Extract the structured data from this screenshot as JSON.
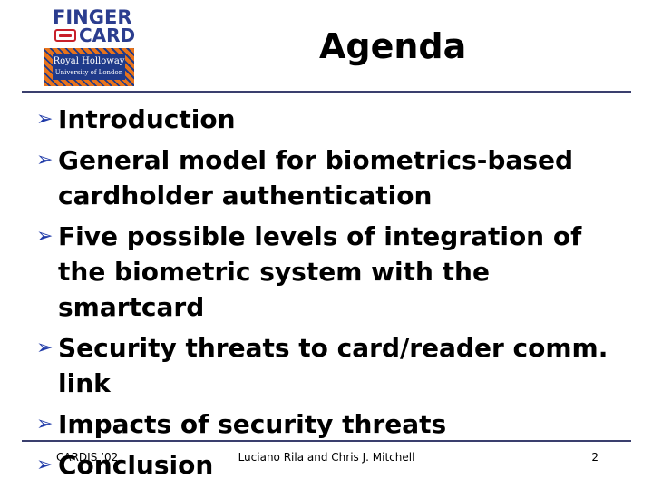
{
  "logo": {
    "finger_text": "FINGER",
    "card_text": "CARD",
    "institution_line1": "Royal Holloway",
    "institution_line2": "University of London"
  },
  "slide": {
    "title": "Agenda",
    "bullets": [
      {
        "text": "Introduction"
      },
      {
        "text": "General model for biometrics-based cardholder authentication"
      },
      {
        "text": "Five possible levels of integration of the biometric system with the smartcard"
      },
      {
        "text": "Security threats to card/reader comm. link"
      },
      {
        "text": "Impacts of security threats"
      },
      {
        "text": "Conclusion"
      }
    ],
    "bullet_icon": "arrow-bullet-icon"
  },
  "footer": {
    "left": "CARDIS ’02",
    "center": "Luciano Rila and Chris J. Mitchell",
    "page_number": "2"
  },
  "colors": {
    "brand_blue": "#2b3d8f",
    "brand_red": "#c8202a",
    "bullet_blue": "#1f3aa8",
    "rule": "#3a3f6e"
  }
}
